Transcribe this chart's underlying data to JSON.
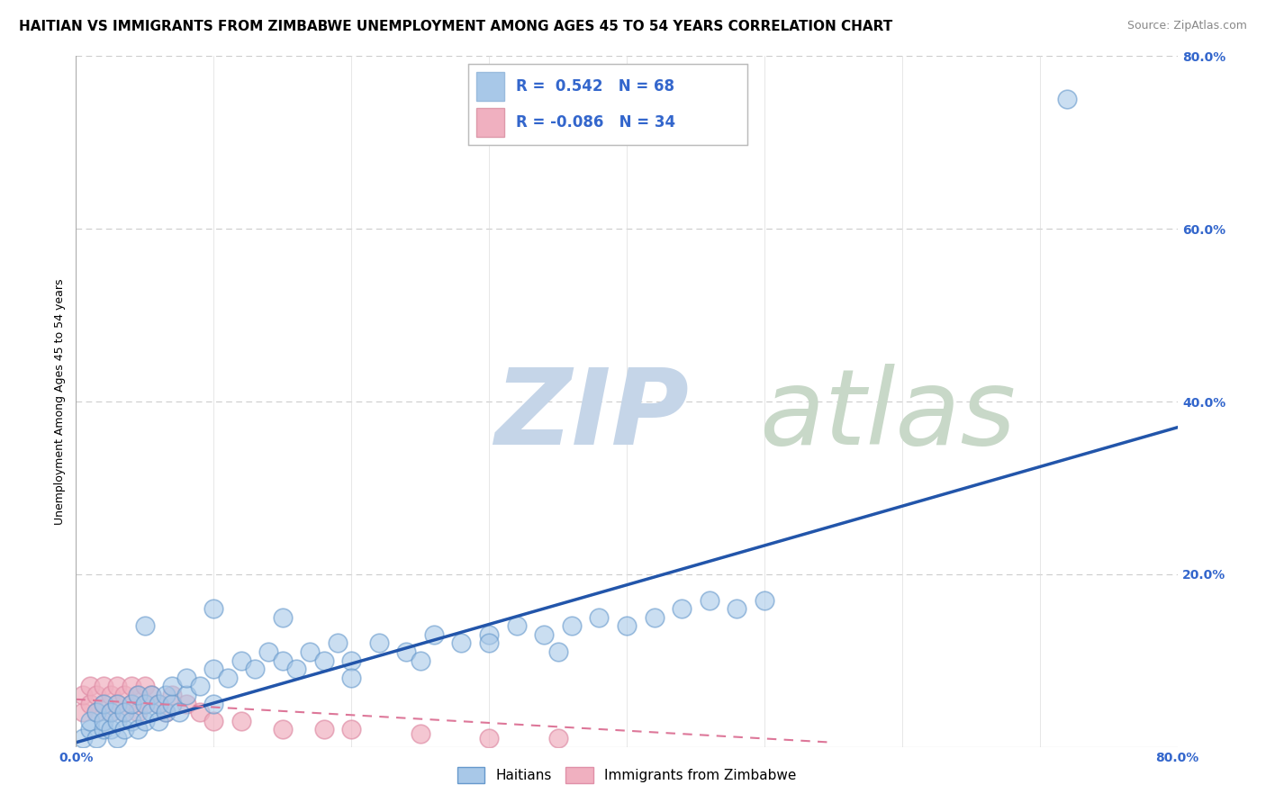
{
  "title": "HAITIAN VS IMMIGRANTS FROM ZIMBABWE UNEMPLOYMENT AMONG AGES 45 TO 54 YEARS CORRELATION CHART",
  "source": "Source: ZipAtlas.com",
  "ylabel": "Unemployment Among Ages 45 to 54 years",
  "xlim": [
    0.0,
    0.8
  ],
  "ylim": [
    0.0,
    0.8
  ],
  "ytick_positions": [
    0.0,
    0.2,
    0.4,
    0.6,
    0.8
  ],
  "yticklabels": [
    "",
    "20.0%",
    "40.0%",
    "60.0%",
    "80.0%"
  ],
  "grid_color": "#cccccc",
  "background_color": "#ffffff",
  "watermark_zip": "ZIP",
  "watermark_atlas": "atlas",
  "watermark_color_zip": "#c5d5e8",
  "watermark_color_atlas": "#c8d8c8",
  "legend_r1": "0.542",
  "legend_n1": "68",
  "legend_r2": "-0.086",
  "legend_n2": "34",
  "blue_color": "#a8c8e8",
  "pink_color": "#f0b0c0",
  "blue_line_color": "#2255aa",
  "pink_line_color": "#dd7799",
  "tick_color": "#3366cc",
  "title_fontsize": 11,
  "axis_label_fontsize": 9,
  "tick_fontsize": 10,
  "haitian_x": [
    0.005,
    0.01,
    0.01,
    0.015,
    0.015,
    0.02,
    0.02,
    0.02,
    0.025,
    0.025,
    0.03,
    0.03,
    0.03,
    0.035,
    0.035,
    0.04,
    0.04,
    0.045,
    0.045,
    0.05,
    0.05,
    0.055,
    0.055,
    0.06,
    0.06,
    0.065,
    0.065,
    0.07,
    0.07,
    0.075,
    0.08,
    0.08,
    0.09,
    0.1,
    0.1,
    0.11,
    0.12,
    0.13,
    0.14,
    0.15,
    0.16,
    0.17,
    0.18,
    0.19,
    0.2,
    0.22,
    0.24,
    0.26,
    0.28,
    0.3,
    0.32,
    0.34,
    0.36,
    0.38,
    0.4,
    0.42,
    0.44,
    0.46,
    0.48,
    0.5,
    0.05,
    0.1,
    0.15,
    0.2,
    0.25,
    0.3,
    0.72,
    0.35
  ],
  "haitian_y": [
    0.01,
    0.02,
    0.03,
    0.01,
    0.04,
    0.02,
    0.03,
    0.05,
    0.02,
    0.04,
    0.01,
    0.03,
    0.05,
    0.02,
    0.04,
    0.03,
    0.05,
    0.02,
    0.06,
    0.03,
    0.05,
    0.04,
    0.06,
    0.03,
    0.05,
    0.04,
    0.06,
    0.05,
    0.07,
    0.04,
    0.06,
    0.08,
    0.07,
    0.05,
    0.09,
    0.08,
    0.1,
    0.09,
    0.11,
    0.1,
    0.09,
    0.11,
    0.1,
    0.12,
    0.1,
    0.12,
    0.11,
    0.13,
    0.12,
    0.13,
    0.14,
    0.13,
    0.14,
    0.15,
    0.14,
    0.15,
    0.16,
    0.17,
    0.16,
    0.17,
    0.14,
    0.16,
    0.15,
    0.08,
    0.1,
    0.12,
    0.75,
    0.11
  ],
  "zimbabwe_x": [
    0.005,
    0.005,
    0.01,
    0.01,
    0.015,
    0.015,
    0.02,
    0.02,
    0.025,
    0.025,
    0.03,
    0.03,
    0.035,
    0.035,
    0.04,
    0.04,
    0.045,
    0.045,
    0.05,
    0.05,
    0.055,
    0.06,
    0.065,
    0.07,
    0.08,
    0.09,
    0.1,
    0.12,
    0.15,
    0.18,
    0.2,
    0.25,
    0.3,
    0.35
  ],
  "zimbabwe_y": [
    0.04,
    0.06,
    0.05,
    0.07,
    0.04,
    0.06,
    0.05,
    0.07,
    0.04,
    0.06,
    0.05,
    0.07,
    0.04,
    0.06,
    0.05,
    0.07,
    0.04,
    0.06,
    0.05,
    0.07,
    0.06,
    0.05,
    0.04,
    0.06,
    0.05,
    0.04,
    0.03,
    0.03,
    0.02,
    0.02,
    0.02,
    0.015,
    0.01,
    0.01
  ],
  "haitian_trend_x": [
    0.0,
    0.8
  ],
  "haitian_trend_y": [
    0.005,
    0.37
  ],
  "zimbabwe_trend_x": [
    0.0,
    0.55
  ],
  "zimbabwe_trend_y": [
    0.055,
    0.005
  ]
}
